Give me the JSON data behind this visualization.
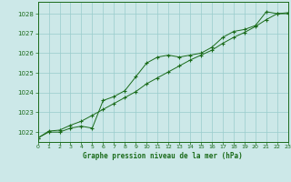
{
  "title": "Graphe pression niveau de la mer (hPa)",
  "bg_color": "#cce8e8",
  "grid_color": "#99cccc",
  "line_color": "#1a6b1a",
  "x_min": 0,
  "x_max": 23,
  "y_min": 1021.5,
  "y_max": 1028.6,
  "y_ticks": [
    1022,
    1023,
    1024,
    1025,
    1026,
    1027,
    1028
  ],
  "series_data": [
    [
      0,
      1021.7
    ],
    [
      1,
      1022.0
    ],
    [
      2,
      1022.0
    ],
    [
      3,
      1022.2
    ],
    [
      4,
      1022.3
    ],
    [
      5,
      1022.2
    ],
    [
      6,
      1023.6
    ],
    [
      7,
      1023.8
    ],
    [
      8,
      1024.1
    ],
    [
      9,
      1024.8
    ],
    [
      10,
      1025.5
    ],
    [
      11,
      1025.8
    ],
    [
      12,
      1025.9
    ],
    [
      13,
      1025.8
    ],
    [
      14,
      1025.9
    ],
    [
      15,
      1026.0
    ],
    [
      16,
      1026.3
    ],
    [
      17,
      1026.8
    ],
    [
      18,
      1027.1
    ],
    [
      19,
      1027.2
    ],
    [
      20,
      1027.4
    ],
    [
      21,
      1028.1
    ],
    [
      22,
      1028.0
    ],
    [
      23,
      1028.0
    ]
  ],
  "series_smooth": [
    [
      0,
      1021.7
    ],
    [
      1,
      1022.05
    ],
    [
      2,
      1022.1
    ],
    [
      3,
      1022.35
    ],
    [
      4,
      1022.55
    ],
    [
      5,
      1022.85
    ],
    [
      6,
      1023.15
    ],
    [
      7,
      1023.45
    ],
    [
      8,
      1023.75
    ],
    [
      9,
      1024.05
    ],
    [
      10,
      1024.45
    ],
    [
      11,
      1024.75
    ],
    [
      12,
      1025.05
    ],
    [
      13,
      1025.35
    ],
    [
      14,
      1025.65
    ],
    [
      15,
      1025.9
    ],
    [
      16,
      1026.15
    ],
    [
      17,
      1026.5
    ],
    [
      18,
      1026.8
    ],
    [
      19,
      1027.05
    ],
    [
      20,
      1027.35
    ],
    [
      21,
      1027.7
    ],
    [
      22,
      1028.0
    ],
    [
      23,
      1028.05
    ]
  ],
  "figwidth": 3.2,
  "figheight": 2.0,
  "dpi": 100
}
